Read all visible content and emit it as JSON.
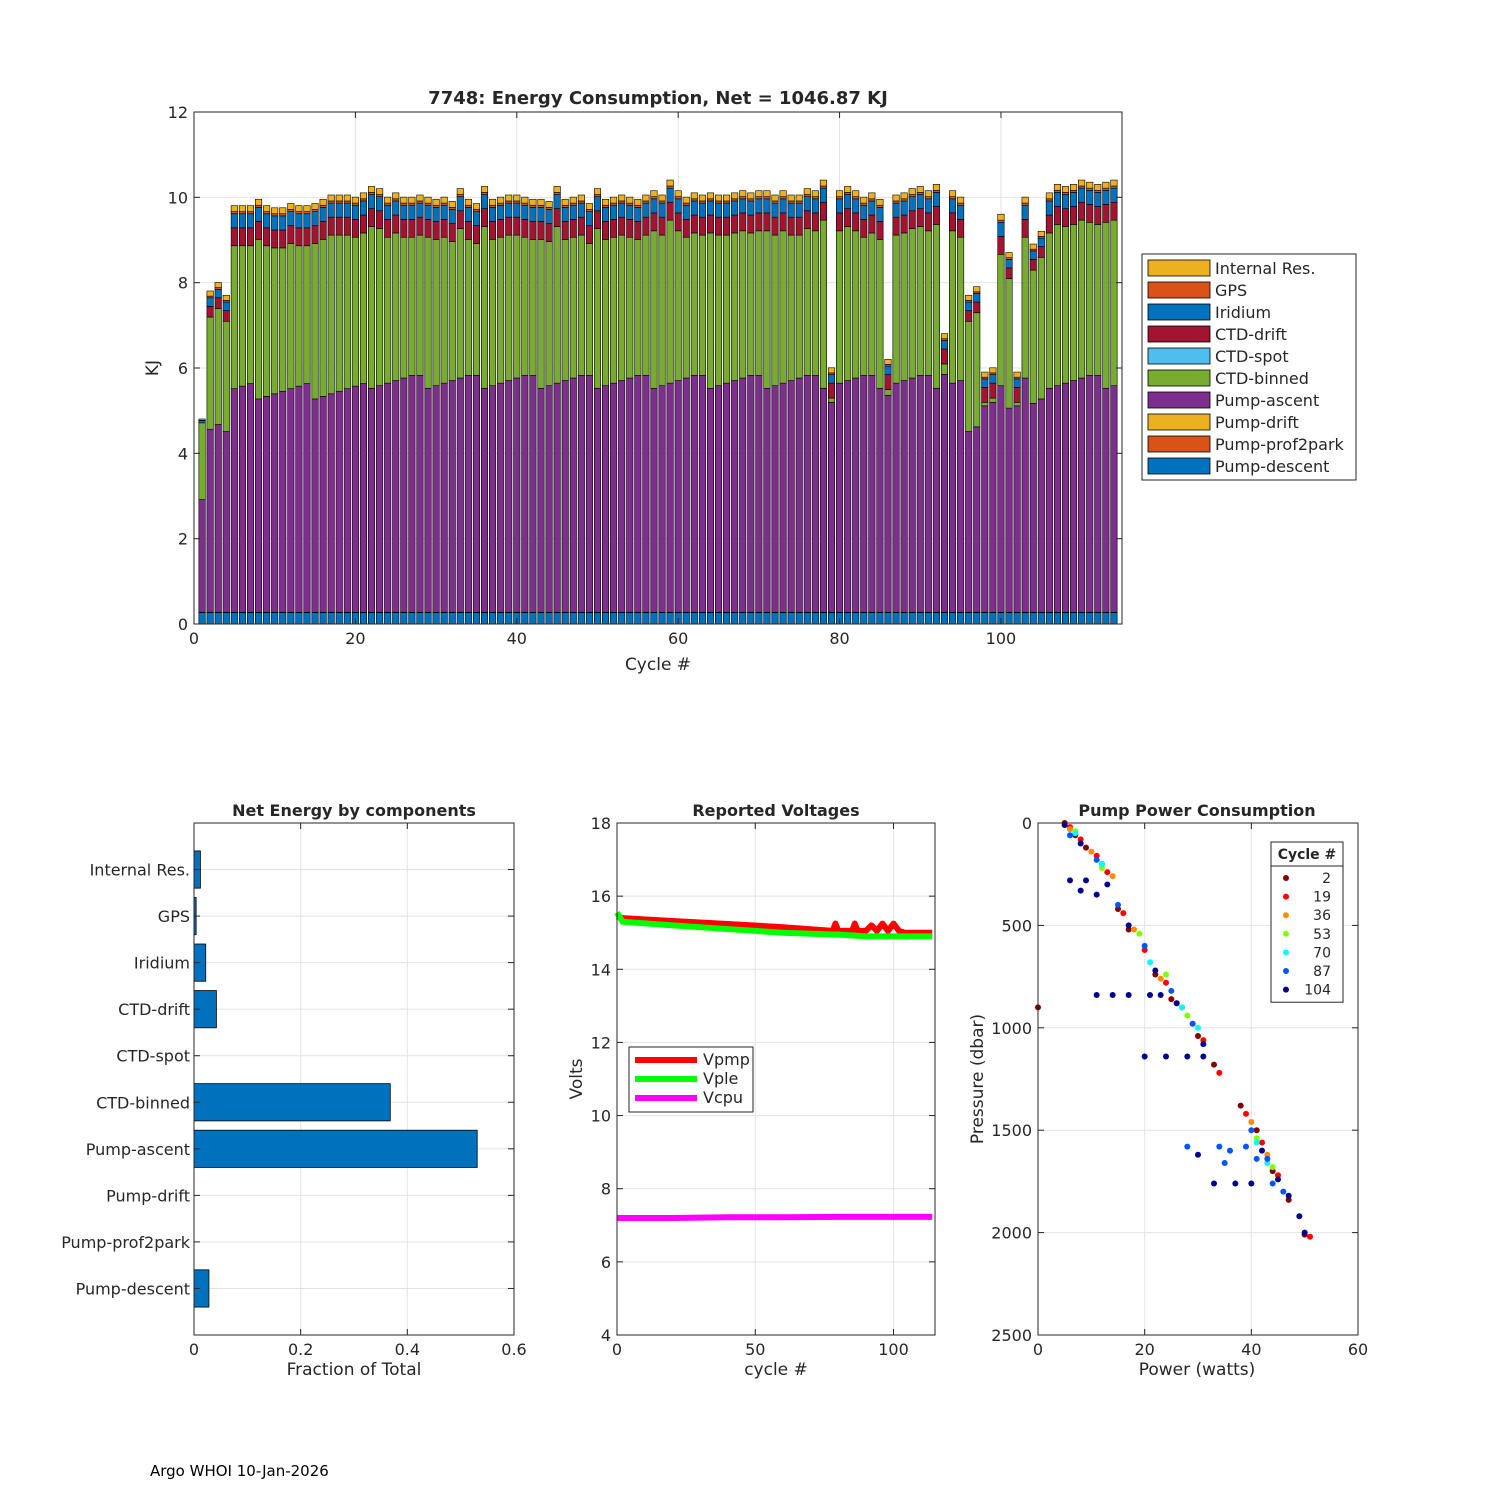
{
  "footer": "Argo WHOI 10-Jan-2026",
  "chart_data": [
    {
      "type": "bar",
      "stacked": true,
      "title": "7748: Energy Consumption,  Net = 1046.87 KJ",
      "xlabel": "Cycle #",
      "ylabel": "KJ",
      "xlim": [
        0,
        115
      ],
      "ylim": [
        0,
        12
      ],
      "xticks": [
        0,
        20,
        40,
        60,
        80,
        100
      ],
      "yticks": [
        0,
        2,
        4,
        6,
        8,
        10,
        12
      ],
      "legend_position": "right",
      "legend": [
        "Internal Res.",
        "GPS",
        "Iridium",
        "CTD-drift",
        "CTD-spot",
        "CTD-binned",
        "Pump-ascent",
        "Pump-drift",
        "Pump-prof2park",
        "Pump-descent"
      ],
      "colors": {
        "Pump-descent": "#0072BD",
        "Pump-prof2park": "#D95319",
        "Pump-drift": "#EDB120",
        "Pump-ascent": "#7E2F8E",
        "CTD-binned": "#77AC30",
        "CTD-spot": "#4DBEEE",
        "CTD-drift": "#A2142F",
        "Iridium": "#0072BD",
        "GPS": "#D95319",
        "Internal Res.": "#EDB120"
      },
      "cycles": [
        1,
        2,
        3,
        4,
        5,
        6,
        7,
        8,
        9,
        10,
        11,
        12,
        13,
        14,
        15,
        16,
        17,
        18,
        19,
        20,
        21,
        22,
        23,
        24,
        25,
        26,
        27,
        28,
        29,
        30,
        31,
        32,
        33,
        34,
        35,
        36,
        37,
        38,
        39,
        40,
        41,
        42,
        43,
        44,
        45,
        46,
        47,
        48,
        49,
        50,
        51,
        52,
        53,
        54,
        55,
        56,
        57,
        58,
        59,
        60,
        61,
        62,
        63,
        64,
        65,
        66,
        67,
        68,
        69,
        70,
        71,
        72,
        73,
        74,
        75,
        76,
        77,
        78,
        79,
        80,
        81,
        82,
        83,
        84,
        85,
        86,
        87,
        88,
        89,
        90,
        91,
        92,
        93,
        94,
        95,
        96,
        97,
        98,
        99,
        100,
        101,
        102,
        103,
        104,
        105,
        106,
        107,
        108,
        109,
        110,
        111,
        112,
        113,
        114
      ],
      "totals": [
        4.8,
        7.8,
        8.0,
        7.7,
        9.8,
        9.8,
        9.8,
        9.95,
        9.8,
        9.75,
        9.75,
        9.85,
        9.8,
        9.8,
        9.85,
        9.95,
        10.05,
        10.05,
        10.05,
        10.0,
        10.1,
        10.25,
        10.2,
        10.0,
        10.1,
        10.0,
        10.0,
        10.05,
        10.0,
        9.95,
        10.0,
        9.9,
        10.2,
        9.95,
        9.85,
        10.25,
        9.95,
        10.0,
        10.05,
        10.05,
        10.0,
        9.95,
        9.95,
        9.9,
        10.25,
        9.95,
        10.0,
        10.05,
        9.85,
        10.2,
        9.95,
        10.0,
        10.05,
        10.0,
        9.95,
        10.05,
        10.15,
        10.05,
        10.4,
        10.15,
        10.0,
        10.1,
        10.05,
        10.1,
        10.05,
        10.05,
        10.1,
        10.15,
        10.1,
        10.15,
        10.15,
        10.05,
        10.15,
        10.05,
        10.05,
        10.2,
        10.15,
        10.4,
        6.0,
        10.15,
        10.25,
        10.15,
        10.0,
        10.1,
        9.95,
        6.2,
        10.05,
        10.1,
        10.2,
        10.25,
        10.15,
        10.3,
        6.8,
        10.15,
        10.0,
        7.7,
        7.9,
        5.9,
        6.0,
        9.6,
        8.7,
        5.9,
        10.0,
        8.9,
        9.2,
        10.1,
        10.3,
        10.25,
        10.3,
        10.4,
        10.35,
        10.3,
        10.35,
        10.4
      ]
    },
    {
      "type": "bar",
      "orientation": "horizontal",
      "title": "Net Energy by components",
      "xlabel": "Fraction of Total",
      "xlim": [
        0,
        0.6
      ],
      "xticks": [
        0,
        0.2,
        0.4,
        0.6
      ],
      "categories": [
        "Internal Res.",
        "GPS",
        "Iridium",
        "CTD-drift",
        "CTD-spot",
        "CTD-binned",
        "Pump-ascent",
        "Pump-drift",
        "Pump-prof2park",
        "Pump-descent"
      ],
      "values": [
        0.012,
        0.004,
        0.022,
        0.042,
        0.0,
        0.368,
        0.531,
        0.0,
        0.0,
        0.028
      ],
      "color": "#0072BD"
    },
    {
      "type": "line",
      "title": "Reported Voltages",
      "xlabel": "cycle #",
      "ylabel": "Volts",
      "xlim": [
        0,
        115
      ],
      "ylim": [
        4,
        18
      ],
      "xticks": [
        0,
        50,
        100
      ],
      "yticks": [
        4,
        6,
        8,
        10,
        12,
        14,
        16,
        18
      ],
      "legend_position": "center-left",
      "series": [
        {
          "name": "Vpmp",
          "color": "#FF0000",
          "x": [
            0,
            2,
            20,
            40,
            60,
            78,
            79,
            80,
            85,
            86,
            87,
            90,
            92,
            94,
            96,
            98,
            100,
            102,
            104,
            114
          ],
          "y": [
            15.45,
            15.4,
            15.32,
            15.24,
            15.15,
            15.05,
            15.25,
            15.05,
            15.05,
            15.25,
            15.05,
            15.05,
            15.2,
            15.05,
            15.25,
            15.05,
            15.25,
            15.05,
            15.0,
            15.0
          ]
        },
        {
          "name": "Vple",
          "color": "#00FF00",
          "x": [
            0,
            2,
            20,
            40,
            60,
            78,
            80,
            90,
            100,
            114
          ],
          "y": [
            15.55,
            15.3,
            15.2,
            15.1,
            15.0,
            14.95,
            14.95,
            14.9,
            14.9,
            14.9
          ]
        },
        {
          "name": "Vcpu",
          "color": "#FF00FF",
          "x": [
            0,
            20,
            40,
            60,
            80,
            100,
            114
          ],
          "y": [
            7.2,
            7.2,
            7.22,
            7.22,
            7.23,
            7.23,
            7.23
          ]
        }
      ]
    },
    {
      "type": "scatter",
      "title": "Pump Power Consumption",
      "xlabel": "Power (watts)",
      "ylabel": "Pressure (dbar)",
      "xlim": [
        0,
        60
      ],
      "ylim": [
        0,
        2500
      ],
      "y_reversed": true,
      "xticks": [
        0,
        20,
        40,
        60
      ],
      "yticks": [
        0,
        500,
        1000,
        1500,
        2000,
        2500
      ],
      "legend_title": "Cycle #",
      "legend_position": "top-right",
      "series": [
        {
          "name": "2",
          "color": "#800000",
          "points": [
            [
              5,
              0
            ],
            [
              7,
              60
            ],
            [
              9,
              120
            ],
            [
              12,
              200
            ],
            [
              15,
              420
            ],
            [
              17,
              520
            ],
            [
              22,
              740
            ],
            [
              25,
              860
            ],
            [
              30,
              1040
            ],
            [
              33,
              1180
            ],
            [
              38,
              1380
            ],
            [
              41,
              1500
            ],
            [
              44,
              1700
            ],
            [
              47,
              1840
            ],
            [
              50,
              2010
            ],
            [
              0,
              900
            ]
          ]
        },
        {
          "name": "19",
          "color": "#FF0000",
          "points": [
            [
              6,
              20
            ],
            [
              8,
              80
            ],
            [
              11,
              160
            ],
            [
              13,
              240
            ],
            [
              16,
              440
            ],
            [
              20,
              620
            ],
            [
              24,
              780
            ],
            [
              27,
              900
            ],
            [
              31,
              1060
            ],
            [
              34,
              1220
            ],
            [
              39,
              1420
            ],
            [
              42,
              1560
            ],
            [
              45,
              1720
            ],
            [
              51,
              2020
            ]
          ]
        },
        {
          "name": "36",
          "color": "#FF8C00",
          "points": [
            [
              6,
              30
            ],
            [
              10,
              140
            ],
            [
              14,
              260
            ],
            [
              18,
              520
            ],
            [
              23,
              760
            ],
            [
              26,
              880
            ],
            [
              29,
              980
            ],
            [
              40,
              1460
            ],
            [
              43,
              1620
            ]
          ]
        },
        {
          "name": "53",
          "color": "#80FF00",
          "points": [
            [
              7,
              40
            ],
            [
              12,
              220
            ],
            [
              19,
              540
            ],
            [
              24,
              740
            ],
            [
              28,
              940
            ],
            [
              41,
              1540
            ],
            [
              44,
              1680
            ]
          ]
        },
        {
          "name": "70",
          "color": "#00FFFF",
          "points": [
            [
              7,
              50
            ],
            [
              12,
              200
            ],
            [
              21,
              680
            ],
            [
              27,
              900
            ],
            [
              30,
              1000
            ],
            [
              41,
              1560
            ],
            [
              43,
              1660
            ]
          ]
        },
        {
          "name": "87",
          "color": "#0055FF",
          "points": [
            [
              6,
              60
            ],
            [
              11,
              180
            ],
            [
              15,
              400
            ],
            [
              20,
              600
            ],
            [
              25,
              820
            ],
            [
              29,
              980
            ],
            [
              40,
              1500
            ],
            [
              43,
              1640
            ],
            [
              46,
              1800
            ],
            [
              28,
              1580
            ],
            [
              34,
              1580
            ],
            [
              36,
              1600
            ],
            [
              39,
              1580
            ],
            [
              35,
              1660
            ],
            [
              41,
              1640
            ],
            [
              44,
              1760
            ]
          ]
        },
        {
          "name": "104",
          "color": "#00008B",
          "points": [
            [
              5,
              10
            ],
            [
              8,
              100
            ],
            [
              13,
              300
            ],
            [
              17,
              500
            ],
            [
              22,
              720
            ],
            [
              26,
              880
            ],
            [
              31,
              1080
            ],
            [
              42,
              1600
            ],
            [
              45,
              1740
            ],
            [
              49,
              1920
            ],
            [
              11,
              840
            ],
            [
              14,
              840
            ],
            [
              17,
              840
            ],
            [
              21,
              840
            ],
            [
              23,
              840
            ],
            [
              20,
              1140
            ],
            [
              24,
              1140
            ],
            [
              28,
              1140
            ],
            [
              31,
              1140
            ],
            [
              6,
              280
            ],
            [
              9,
              280
            ],
            [
              8,
              330
            ],
            [
              11,
              350
            ],
            [
              30,
              1620
            ],
            [
              33,
              1760
            ],
            [
              37,
              1760
            ],
            [
              40,
              1760
            ],
            [
              47,
              1820
            ],
            [
              50,
              2000
            ]
          ]
        }
      ]
    }
  ]
}
